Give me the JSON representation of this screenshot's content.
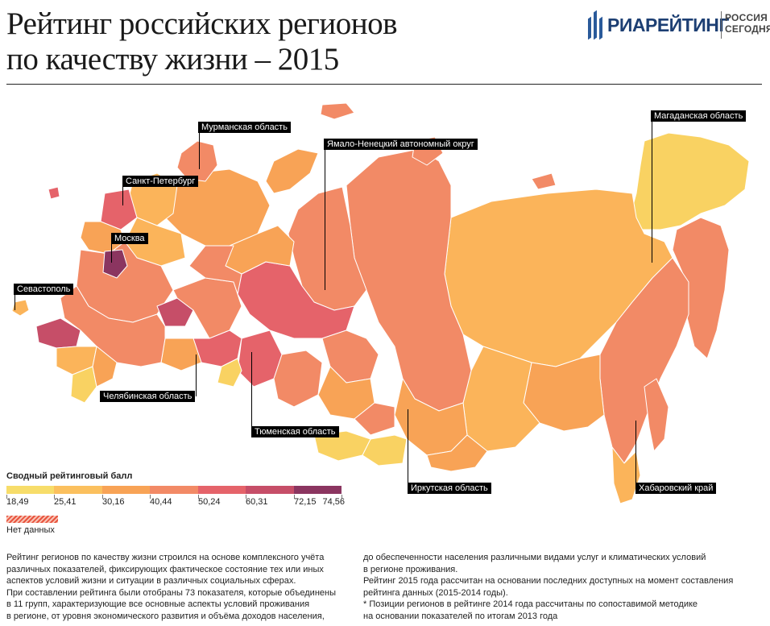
{
  "title": {
    "line1": "Рейтинг российских регионов",
    "line2": "по качеству жизни – 2015"
  },
  "logo": {
    "brand": "РИАРЕЙТИНГ",
    "partner_line1": "РОССИЯ",
    "partner_line2": "СЕГОДНЯ",
    "brand_color": "#1d3f73"
  },
  "map_labels": {
    "murmansk": "Мурманская область",
    "spb": "Санкт-Петербург",
    "moscow": "Москва",
    "sevastopol": "Севастополь",
    "chelyabinsk": "Челябинская область",
    "tyumen": "Тюменская область",
    "yamal": "Ямало-Ненецкий автономный округ",
    "irkutsk": "Иркутская область",
    "magadan": "Магаданская область",
    "khabarovsk": "Хабаровский край"
  },
  "legend": {
    "title": "Сводный рейтинговый балл",
    "ticks": [
      "18,49",
      "25,41",
      "30,16",
      "40,44",
      "50,24",
      "60,31",
      "72,15",
      "74,56"
    ],
    "colors": [
      "#f7dd6a",
      "#fbc05e",
      "#f8a356",
      "#f28a66",
      "#e5636a",
      "#c64e68",
      "#8b3560"
    ],
    "nodata_label": "Нет данных",
    "nodata_color": "#e8543f"
  },
  "description": {
    "left": [
      "Рейтинг регионов по качеству жизни строился на основе комплексного учёта",
      "различных показателей, фиксирующих фактическое состояние тех или иных",
      "аспектов условий жизни и ситуации в различных социальных сферах.",
      "При составлении рейтинга были отобраны 73 показателя, которые объединены",
      "в 11 групп, характеризующие все основные аспекты условий проживания",
      "в регионе, от уровня экономического развития и объёма доходов населения,"
    ],
    "right": [
      "до обеспеченности населения различными видами услуг и климатических условий",
      "в регионе проживания.",
      "Рейтинг 2015 года рассчитан на основании последних доступных на момент составления",
      "рейтинга данных (2015-2014 годы).",
      "* Позиции регионов в рейтинге 2014 года рассчитаны по сопоставимой методике",
      "на основании показателей по итогам 2013 года"
    ]
  }
}
